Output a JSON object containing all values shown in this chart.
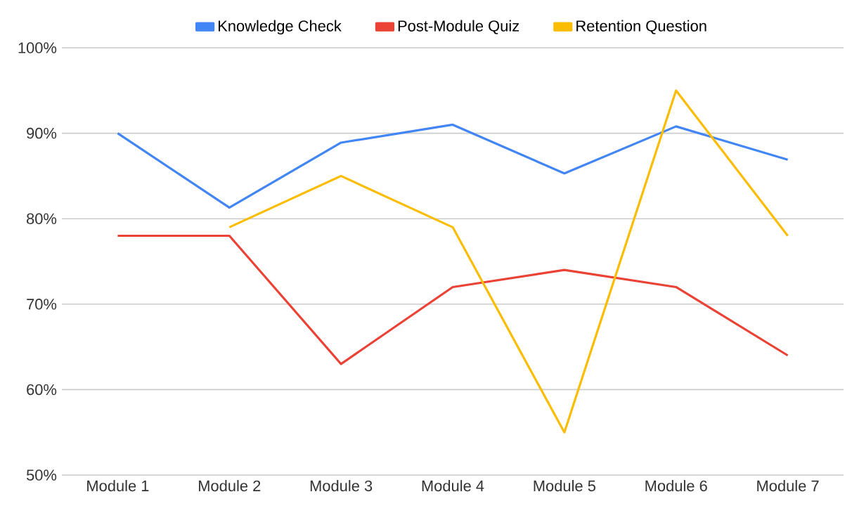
{
  "chart_data": {
    "type": "line",
    "categories": [
      "Module 1",
      "Module 2",
      "Module 3",
      "Module 4",
      "Module 5",
      "Module 6",
      "Module 7"
    ],
    "series": [
      {
        "name": "Knowledge Check",
        "color": "#4285f4",
        "values": [
          90,
          81.3,
          88.9,
          91,
          85.3,
          90.8,
          86.9
        ]
      },
      {
        "name": "Post-Module Quiz",
        "color": "#ea4335",
        "values": [
          78,
          78,
          63,
          72,
          74,
          72,
          64
        ]
      },
      {
        "name": "Retention Question",
        "color": "#fbbc04",
        "values": [
          null,
          79,
          85,
          79,
          55,
          95,
          78
        ]
      }
    ],
    "ylim": [
      50,
      100
    ],
    "yticks": [
      {
        "value": 50,
        "label": "50%"
      },
      {
        "value": 60,
        "label": "60%"
      },
      {
        "value": 70,
        "label": "70%"
      },
      {
        "value": 80,
        "label": "80%"
      },
      {
        "value": 90,
        "label": "90%"
      },
      {
        "value": 100,
        "label": "100%"
      }
    ],
    "grid": "y",
    "legend": "top",
    "marker": "none",
    "line_style": "solid"
  }
}
